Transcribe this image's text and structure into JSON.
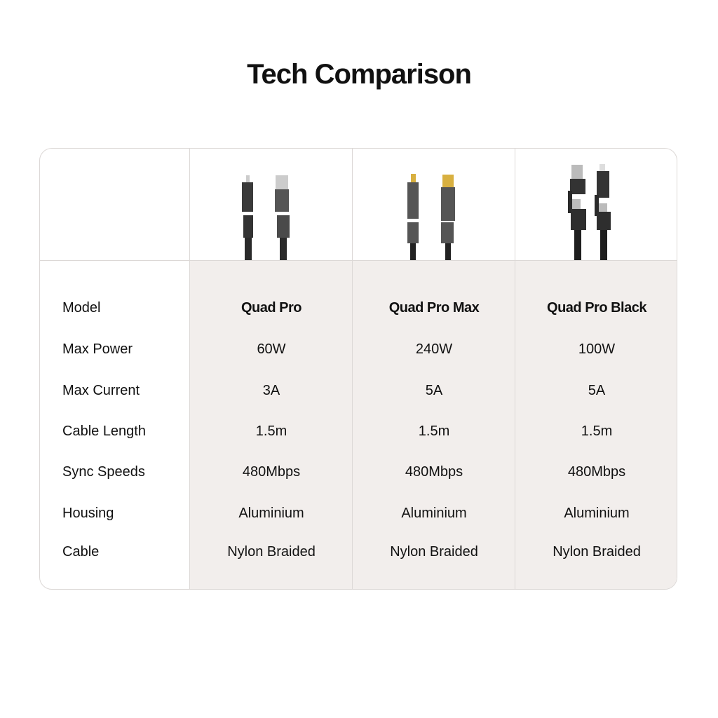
{
  "title": "Tech Comparison",
  "products": [
    {
      "name": "Quad Pro",
      "image_icon": "quad-pro-cable-image"
    },
    {
      "name": "Quad Pro Max",
      "image_icon": "quad-pro-max-cable-image"
    },
    {
      "name": "Quad Pro Black",
      "image_icon": "quad-pro-black-cable-image"
    }
  ],
  "rows": [
    {
      "label": "Model",
      "values": [
        "Quad Pro",
        "Quad Pro Max",
        "Quad Pro Black"
      ]
    },
    {
      "label": "Max Power",
      "values": [
        "60W",
        "240W",
        "100W"
      ]
    },
    {
      "label": "Max Current",
      "values": [
        "3A",
        "5A",
        "5A"
      ]
    },
    {
      "label": "Cable Length",
      "values": [
        "1.5m",
        "1.5m",
        "1.5m"
      ]
    },
    {
      "label": "Sync Speeds",
      "values": [
        "480Mbps",
        "480Mbps",
        "480Mbps"
      ]
    },
    {
      "label": "Housing",
      "values": [
        "Aluminium",
        "Aluminium",
        "Aluminium"
      ]
    },
    {
      "label": "Cable",
      "values": [
        "Nylon Braided",
        "Nylon Braided",
        "Nylon Braided"
      ]
    }
  ],
  "colors": {
    "shade": "#f2eeec",
    "border": "#dcd8d6",
    "text": "#111111"
  }
}
